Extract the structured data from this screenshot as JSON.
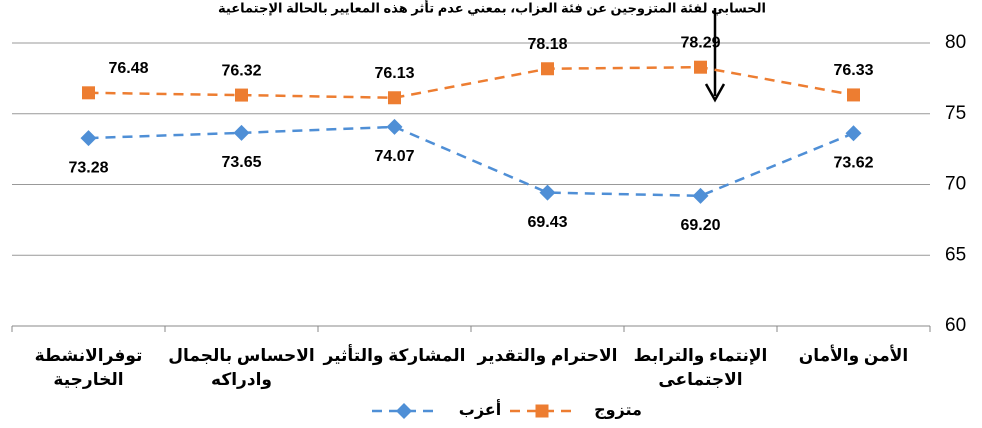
{
  "chart_data": {
    "type": "line",
    "annotation": "الحسابي لفئة المتزوجين عن فئة العزاب، بمعني عدم تأثر هذه المعايير بالحالة الإجتماعية",
    "categories": [
      "توفرالانشطة\nالخارجية",
      "الاحساس بالجمال\nوادراكه",
      "المشاركة والتأثير",
      "الاحترام والتقدير",
      "الإنتماء والترابط\nالاجتماعى",
      "الأمن والأمان"
    ],
    "series": [
      {
        "name": "أعزب",
        "color": "#4f8fd6",
        "marker": "diamond",
        "values": [
          73.28,
          73.65,
          74.07,
          69.43,
          69.2,
          73.62
        ],
        "value_labels": [
          "73.28",
          "73.65",
          "74.07",
          "69.43",
          "69.20",
          "73.62"
        ]
      },
      {
        "name": "متزوج",
        "color": "#ed7d31",
        "marker": "square",
        "values": [
          76.48,
          76.32,
          76.13,
          78.18,
          78.29,
          76.33
        ],
        "value_labels": [
          "76.48",
          "76.32",
          "76.13",
          "78.18",
          "78.29",
          "76.33"
        ]
      }
    ],
    "ylim": [
      60,
      80
    ],
    "yticks": [
      60,
      65,
      70,
      75,
      80
    ],
    "grid": true,
    "legend": "bottom"
  }
}
